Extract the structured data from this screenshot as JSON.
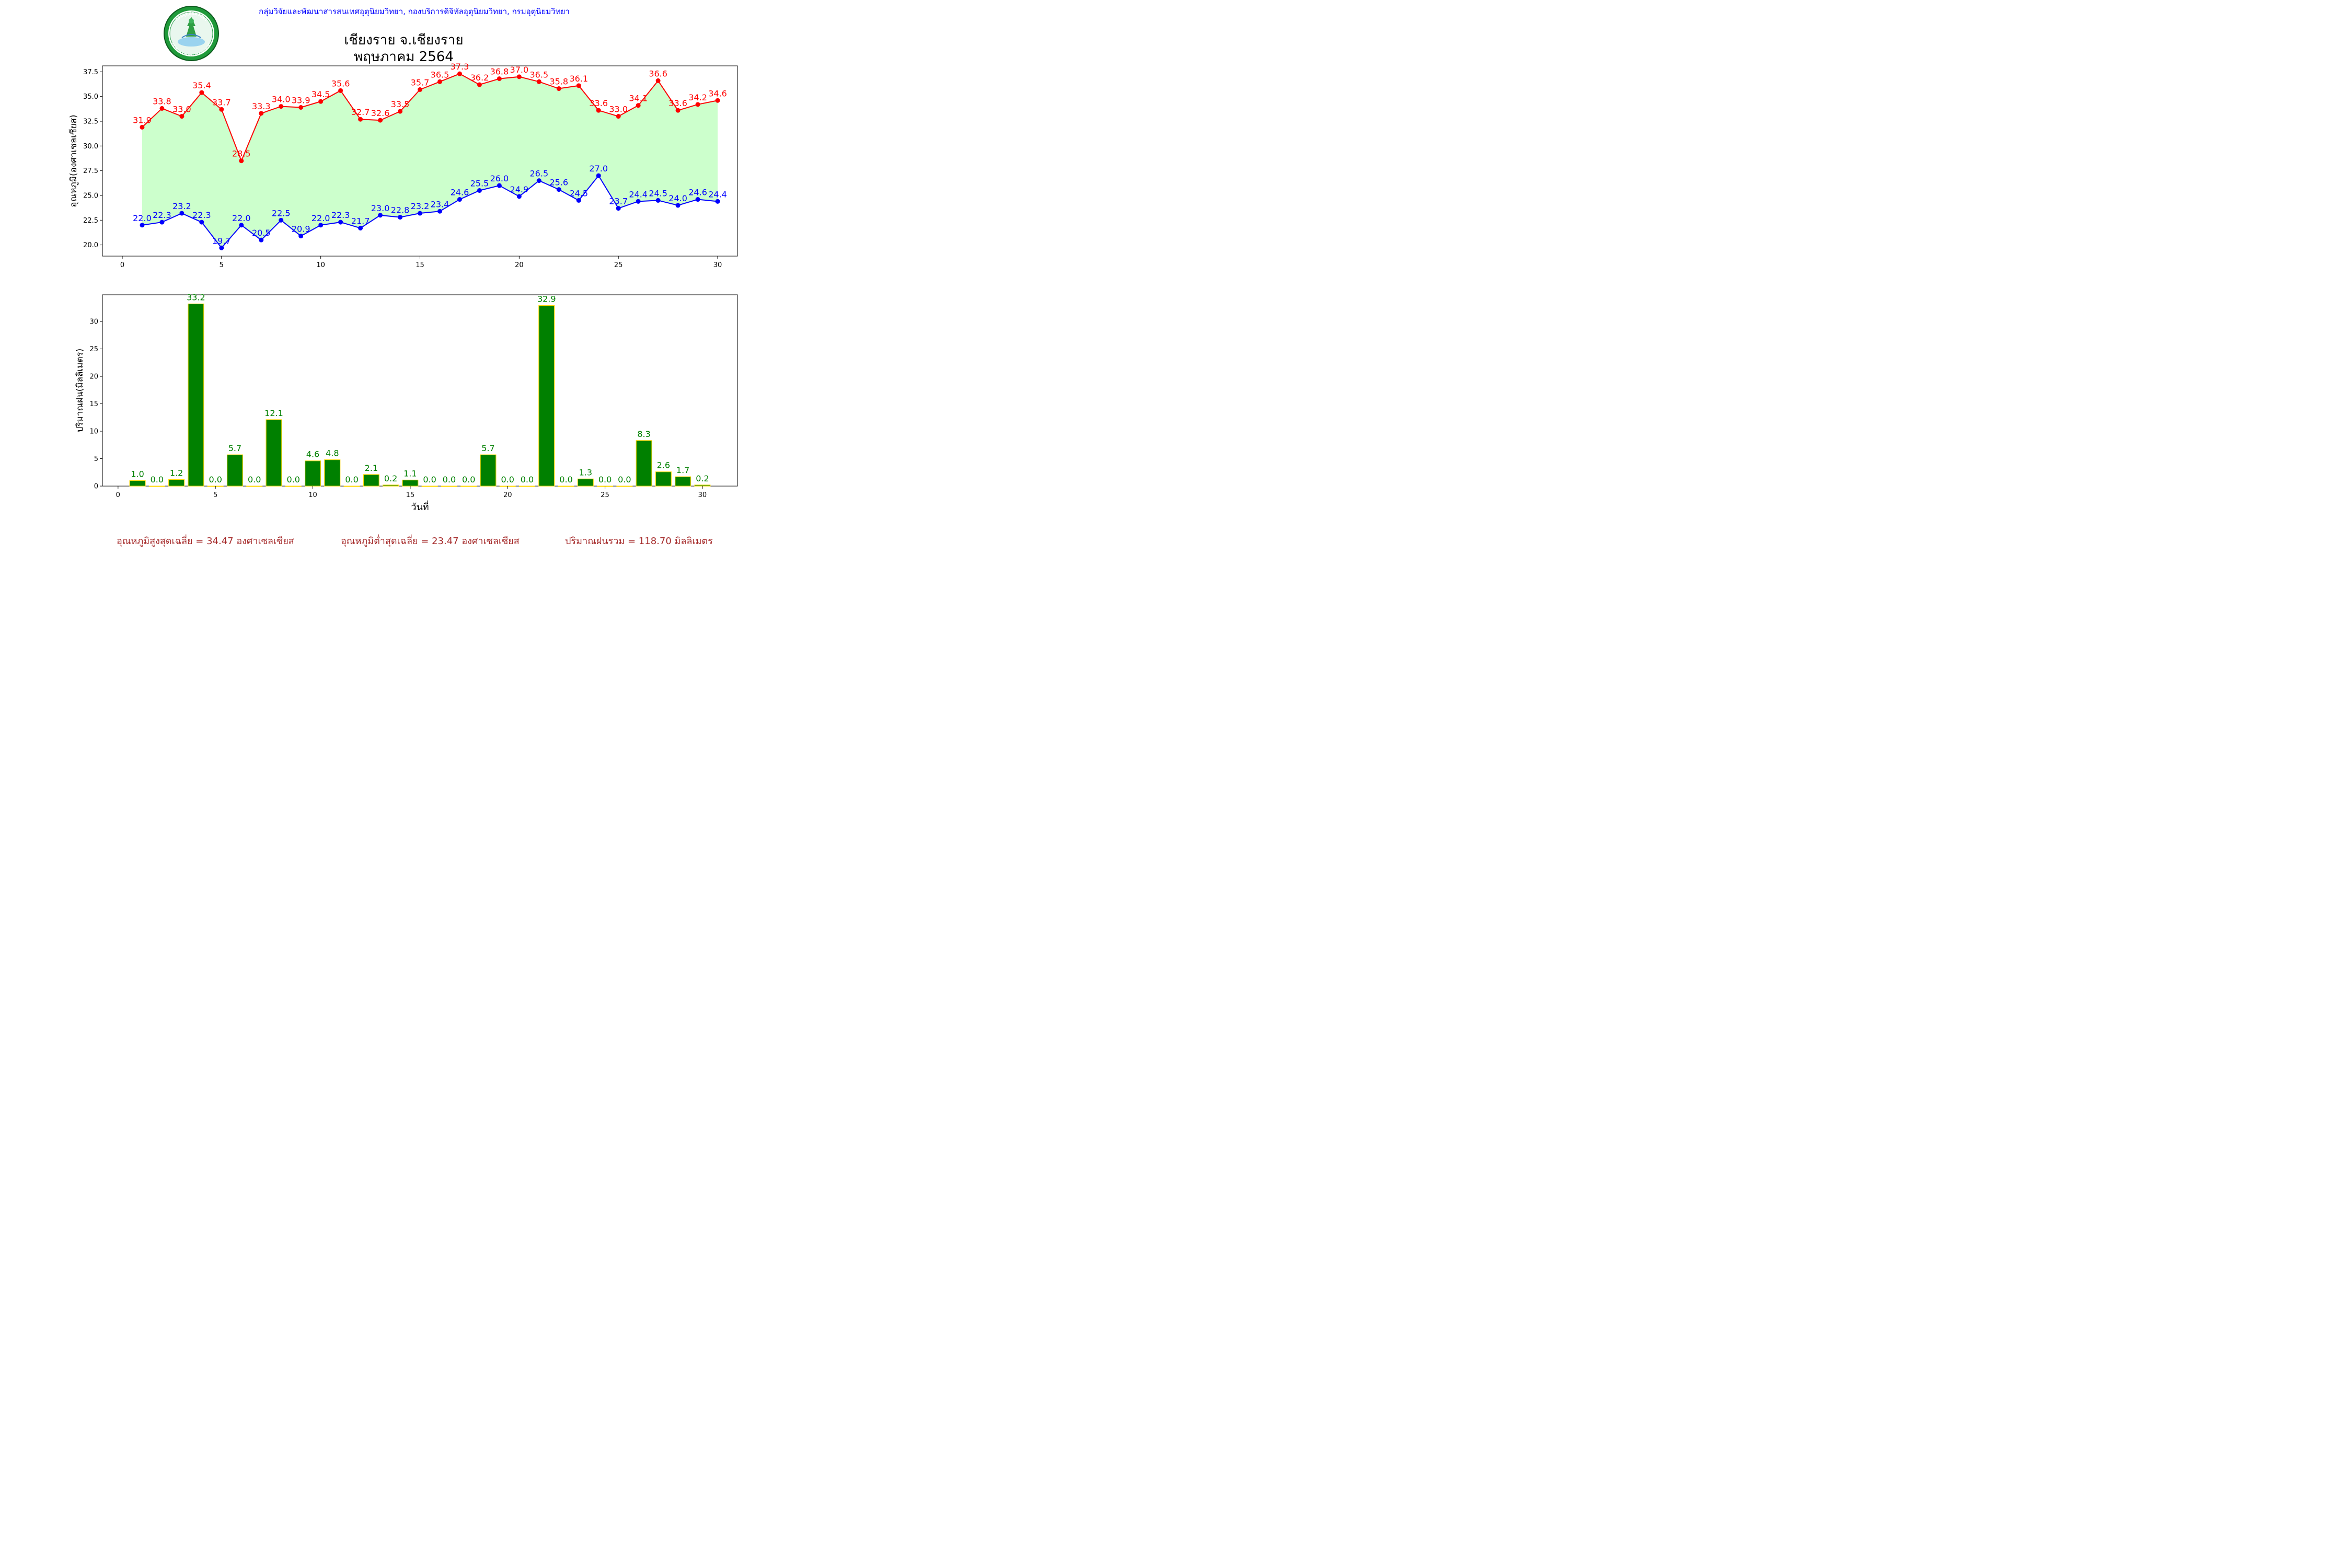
{
  "header": {
    "credit": "กลุ่มวิจัยและพัฒนาสารสนเทศอุตุนิยมวิทยา, กองบริการดิจิทัลอุตุนิยมวิทยา, กรมอุตุนิยมวิทยา",
    "title_line1": "เชียงราย จ.เชียงราย",
    "title_line2": "พฤษภาคม 2564"
  },
  "logo": {
    "icon": "meteorological-department-seal-icon",
    "top_text": "กรมอุตุนิยมวิทยา",
    "bottom_text": "METEOROLOGICAL DEPARTMENT"
  },
  "colors": {
    "max": "#ff0000",
    "min": "#0000ff",
    "band": "#ccffcc",
    "rain_bar": "#008000",
    "rain_edge": "#ffd700",
    "rain_label": "#008000",
    "footer": "#a52a2a",
    "credit": "#0000ff"
  },
  "chart_data": [
    {
      "type": "line",
      "ylabel": "อุณหภูมิ(องศาเซลเซียส)",
      "xlabel": "",
      "x": [
        1,
        2,
        3,
        4,
        5,
        6,
        7,
        8,
        9,
        10,
        11,
        12,
        13,
        14,
        15,
        16,
        17,
        18,
        19,
        20,
        21,
        22,
        23,
        24,
        25,
        26,
        27,
        28,
        29,
        30
      ],
      "xlim": [
        -1,
        31
      ],
      "ylim": [
        18.87,
        38.1
      ],
      "xticks": [
        0,
        5,
        10,
        15,
        20,
        25,
        30
      ],
      "yticks": [
        "20.0",
        "22.5",
        "25.0",
        "27.5",
        "30.0",
        "32.5",
        "35.0",
        "37.5"
      ],
      "grid": false,
      "fill_between": true,
      "series": [
        {
          "values": [
            31.9,
            33.8,
            33.0,
            35.4,
            33.7,
            28.5,
            33.3,
            34.0,
            33.9,
            34.5,
            35.6,
            32.7,
            32.6,
            33.5,
            35.7,
            36.5,
            37.3,
            36.2,
            36.8,
            37.0,
            36.5,
            35.8,
            36.1,
            33.6,
            33.0,
            34.1,
            36.6,
            33.6,
            34.2,
            34.6
          ]
        },
        {
          "values": [
            22.0,
            22.3,
            23.2,
            22.3,
            19.7,
            22.0,
            20.5,
            22.5,
            20.9,
            22.0,
            22.3,
            21.7,
            23.0,
            22.8,
            23.2,
            23.4,
            24.6,
            25.5,
            26.0,
            24.9,
            26.5,
            25.6,
            24.5,
            27.0,
            23.7,
            24.4,
            24.5,
            24.0,
            24.6,
            24.4
          ]
        }
      ]
    },
    {
      "type": "bar",
      "ylabel": "ปริมาณฝน(มิลลิเมตร)",
      "xlabel": "วันที่",
      "x": [
        1,
        2,
        3,
        4,
        5,
        6,
        7,
        8,
        9,
        10,
        11,
        12,
        13,
        14,
        15,
        16,
        17,
        18,
        19,
        20,
        21,
        22,
        23,
        24,
        25,
        26,
        27,
        28,
        29,
        30
      ],
      "xlim": [
        -0.8,
        31.8
      ],
      "ylim": [
        0,
        34.86
      ],
      "xticks": [
        0,
        5,
        10,
        15,
        20,
        25,
        30
      ],
      "yticks": [
        "0",
        "5",
        "10",
        "15",
        "20",
        "25",
        "30"
      ],
      "grid": false,
      "values": [
        1.0,
        0.0,
        1.2,
        33.2,
        0.0,
        5.7,
        0.0,
        12.1,
        0.0,
        4.6,
        4.8,
        0.0,
        2.1,
        0.2,
        1.1,
        0.0,
        0.0,
        0.0,
        5.7,
        0.0,
        0.0,
        32.9,
        0.0,
        1.3,
        0.0,
        0.0,
        8.3,
        2.6,
        1.7,
        0.2
      ]
    }
  ],
  "footer": {
    "avg_max": "อุณหภูมิสูงสุดเฉลี่ย = 34.47 องศาเซลเซียส",
    "avg_min": "อุณหภูมิต่ำสุดเฉลี่ย = 23.47 องศาเซลเซียส",
    "total_rain": "ปริมาณฝนรวม = 118.70 มิลลิเมตร"
  }
}
